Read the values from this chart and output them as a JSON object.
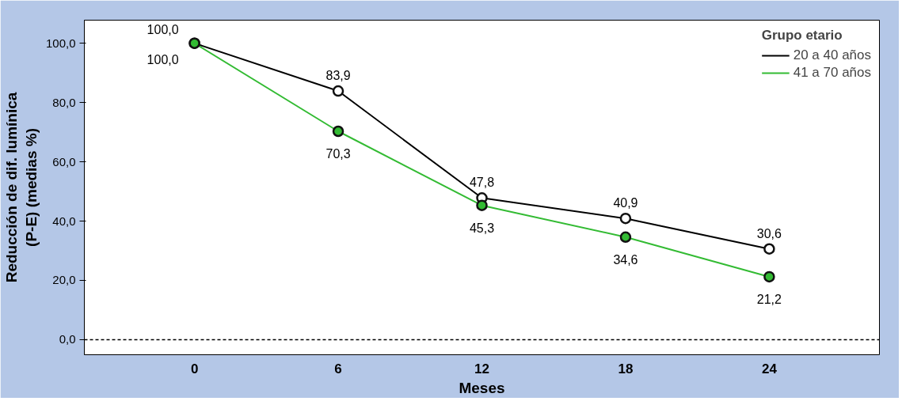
{
  "chart_data": {
    "type": "line",
    "xlabel": "Meses",
    "ylabel": "Reducción de dif. lumínica\n(P-E) (medias %)",
    "legend_title": "Grupo etario",
    "x": [
      0,
      6,
      12,
      18,
      24
    ],
    "series": [
      {
        "name": "20 a 40 años",
        "color": "#000000",
        "values": [
          100.0,
          83.9,
          47.8,
          40.9,
          30.6
        ],
        "value_labels": [
          "100,0",
          "83,9",
          "47,8",
          "40,9",
          "30,6"
        ]
      },
      {
        "name": "41 a 70 años",
        "color": "#33bb33",
        "values": [
          100.0,
          70.3,
          45.3,
          34.6,
          21.2
        ],
        "value_labels": [
          "100,0",
          "70,3",
          "45,3",
          "34,6",
          "21,2"
        ]
      }
    ],
    "xlim": [
      -4.6,
      28.6
    ],
    "ylim": [
      -5.1,
      107.8
    ],
    "xticks": [
      0,
      6,
      12,
      18,
      24
    ],
    "yticks": [
      {
        "value": 0,
        "label": "0,0"
      },
      {
        "value": 20,
        "label": "20,0"
      },
      {
        "value": 40,
        "label": "40,0"
      },
      {
        "value": 60,
        "label": "60,0"
      },
      {
        "value": 80,
        "label": "80,0"
      },
      {
        "value": 100,
        "label": "100,0"
      }
    ],
    "ref_lines": [
      {
        "axis": "y",
        "value": 0,
        "color": "#000000",
        "line_style": "dashed"
      }
    ],
    "marker": "circle",
    "grid": false,
    "legend": "top right"
  }
}
